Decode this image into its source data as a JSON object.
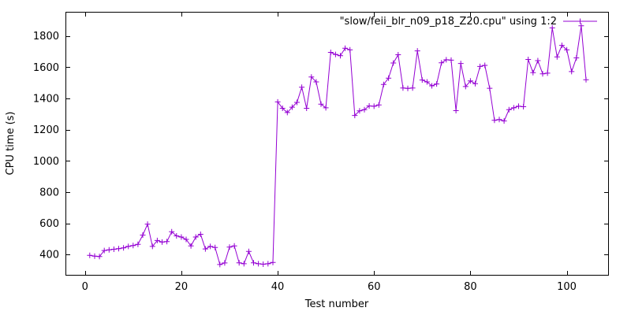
{
  "chart_data": {
    "type": "line",
    "legend_label": "\"slow/feii_blr_n09_p18_Z20.cpu\" using 1:2",
    "xlabel": "Test number",
    "ylabel": "CPU time (s)",
    "x_start": 1,
    "x_step": 1,
    "values": [
      395,
      390,
      387,
      426,
      430,
      434,
      438,
      443,
      452,
      458,
      466,
      525,
      595,
      452,
      490,
      480,
      483,
      546,
      520,
      512,
      497,
      455,
      512,
      530,
      436,
      452,
      445,
      336,
      346,
      448,
      455,
      347,
      341,
      420,
      347,
      341,
      338,
      341,
      350,
      1378,
      1337,
      1310,
      1344,
      1375,
      1472,
      1337,
      1538,
      1506,
      1363,
      1340,
      1695,
      1682,
      1674,
      1722,
      1712,
      1291,
      1321,
      1328,
      1352,
      1350,
      1358,
      1490,
      1530,
      1627,
      1680,
      1467,
      1464,
      1467,
      1705,
      1518,
      1506,
      1481,
      1493,
      1628,
      1648,
      1645,
      1322,
      1624,
      1476,
      1512,
      1495,
      1605,
      1612,
      1465,
      1260,
      1265,
      1256,
      1328,
      1340,
      1350,
      1347,
      1650,
      1565,
      1642,
      1558,
      1562,
      1852,
      1666,
      1740,
      1712,
      1572,
      1660,
      1865,
      1520
    ],
    "xticks": [
      0,
      20,
      40,
      60,
      80,
      100
    ],
    "yticks": [
      400,
      600,
      800,
      1000,
      1200,
      1400,
      1600,
      1800
    ],
    "xlim": [
      -4.05,
      108.75
    ],
    "ylim": [
      265,
      1955
    ],
    "grid": false,
    "legend_position": "top-right",
    "marker": "plus",
    "line_color": "#9400d3",
    "border_color": "#000000",
    "background": "#ffffff",
    "text_color": "#000000"
  }
}
